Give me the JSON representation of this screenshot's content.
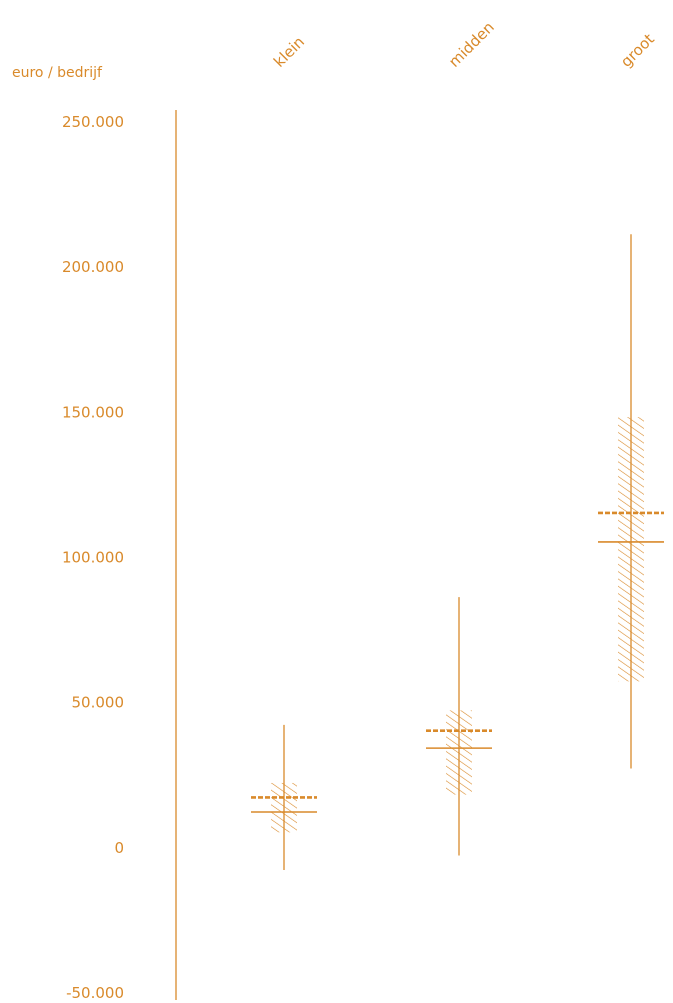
{
  "chart_data": {
    "type": "box-range",
    "ylabel": "euro / bedrijf",
    "ylim": [
      -50000,
      250000
    ],
    "yticks": [
      250000,
      200000,
      150000,
      100000,
      50000,
      0,
      -50000
    ],
    "ytick_labels": [
      "250.000",
      "200.000",
      "150.000",
      "100.000",
      "50.000",
      "0",
      "-50.000"
    ],
    "categories": [
      "klein",
      "midden",
      "groot"
    ],
    "series": [
      {
        "category": "klein",
        "min": -8000,
        "max": 42000,
        "band_low": 5000,
        "band_high": 22000,
        "mean_dashed": 17000,
        "median": 12000
      },
      {
        "category": "midden",
        "min": -3000,
        "max": 86000,
        "band_low": 18000,
        "band_high": 47000,
        "mean_dashed": 40000,
        "median": 34000
      },
      {
        "category": "groot",
        "min": 27000,
        "max": 211000,
        "band_low": 57000,
        "band_high": 148000,
        "mean_dashed": 115000,
        "median": 105000
      }
    ],
    "color": "#D98A2B"
  }
}
